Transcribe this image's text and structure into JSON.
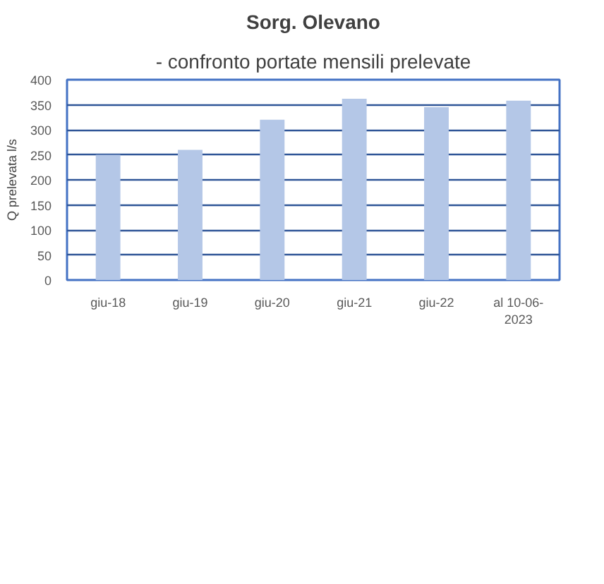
{
  "chart_data": {
    "type": "bar",
    "title": "Sorg. Olevano",
    "subtitle": "- confronto portate mensili prelevate",
    "ylabel": "Q prelevata l/s",
    "categories": [
      "giu-18",
      "giu-19",
      "giu-20",
      "giu-21",
      "giu-22",
      "al 10-06-2023"
    ],
    "values": [
      250,
      260,
      320,
      362,
      345,
      358
    ],
    "color": "#b4c7e7",
    "ylim": [
      0,
      400
    ],
    "yticks": [
      0,
      50,
      100,
      150,
      200,
      250,
      300,
      350,
      400
    ],
    "grid": "y"
  }
}
